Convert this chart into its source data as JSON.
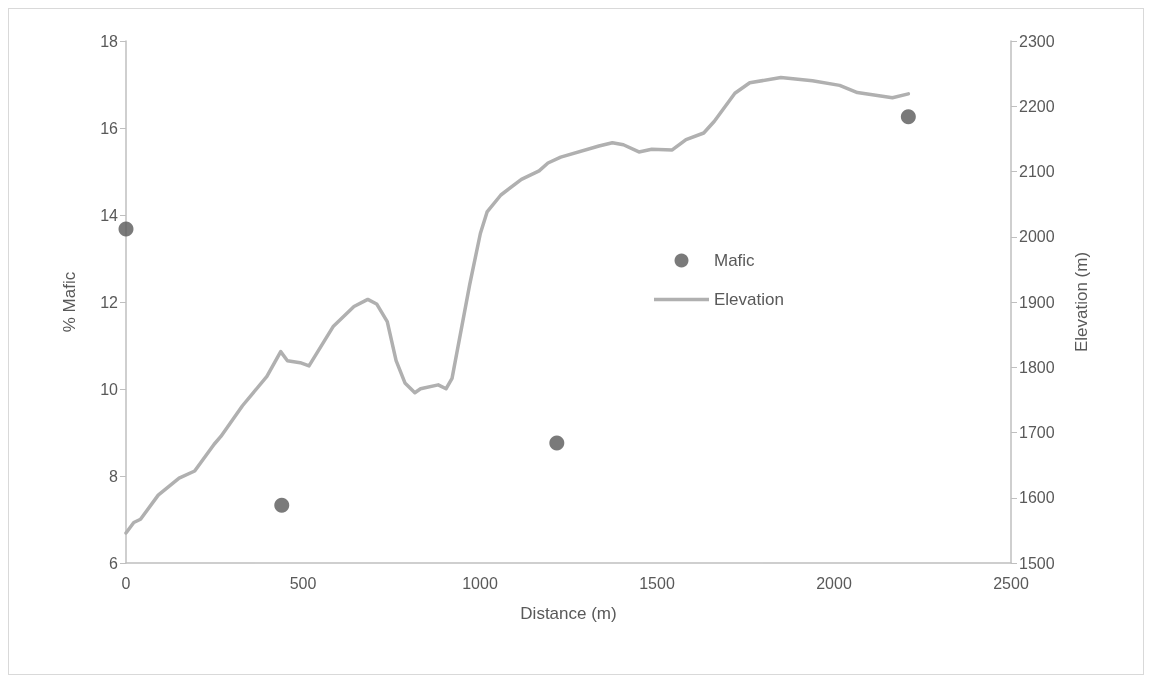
{
  "chart_data": {
    "type": "scatter",
    "xlabel": "Distance (m)",
    "ylabel": "% Mafic",
    "y2label": "Elevation (m)",
    "xlim": [
      0,
      2500
    ],
    "xticks": [
      0,
      500,
      1000,
      1500,
      2000,
      2500
    ],
    "ylim": [
      6,
      18
    ],
    "yticks": [
      6,
      8,
      10,
      12,
      14,
      16,
      18
    ],
    "y2lim": [
      1500,
      2300
    ],
    "y2ticks": [
      1500,
      1600,
      1700,
      1800,
      1900,
      2000,
      2100,
      2200,
      2300
    ],
    "grid": false,
    "legend": "right",
    "marker": "circle",
    "series": [
      {
        "name": "Mafic",
        "color": "#595959",
        "x": [
          0,
          440,
          1217,
          2210
        ],
        "values": [
          13.68,
          7.33,
          8.76,
          16.26
        ]
      },
      {
        "name": "Elevation",
        "type": "line",
        "axis": "y2",
        "color": "#b0b0b0",
        "marker": "none",
        "line_style": "solid",
        "x": [
          0,
          22,
          41,
          91,
          150,
          194,
          249,
          268,
          329,
          398,
          437,
          456,
          492,
          517,
          586,
          644,
          683,
          708,
          738,
          763,
          788,
          816,
          832,
          882,
          904,
          921,
          971,
          1001,
          1020,
          1059,
          1117,
          1167,
          1192,
          1228,
          1336,
          1374,
          1405,
          1449,
          1485,
          1543,
          1582,
          1632,
          1662,
          1720,
          1762,
          1850,
          1939,
          2016,
          2066,
          2165,
          2210
        ],
        "values": [
          1546,
          1562,
          1567,
          1604,
          1630,
          1641,
          1682,
          1694,
          1741,
          1786,
          1824,
          1810,
          1807,
          1802,
          1863,
          1893,
          1904,
          1897,
          1870,
          1810,
          1776,
          1761,
          1767,
          1773,
          1767,
          1783,
          1927,
          2005,
          2038,
          2064,
          2088,
          2101,
          2113,
          2122,
          2139,
          2144,
          2141,
          2130,
          2134,
          2133,
          2149,
          2159,
          2177,
          2220,
          2236,
          2244,
          2239,
          2232,
          2221,
          2213,
          2219
        ]
      }
    ]
  }
}
